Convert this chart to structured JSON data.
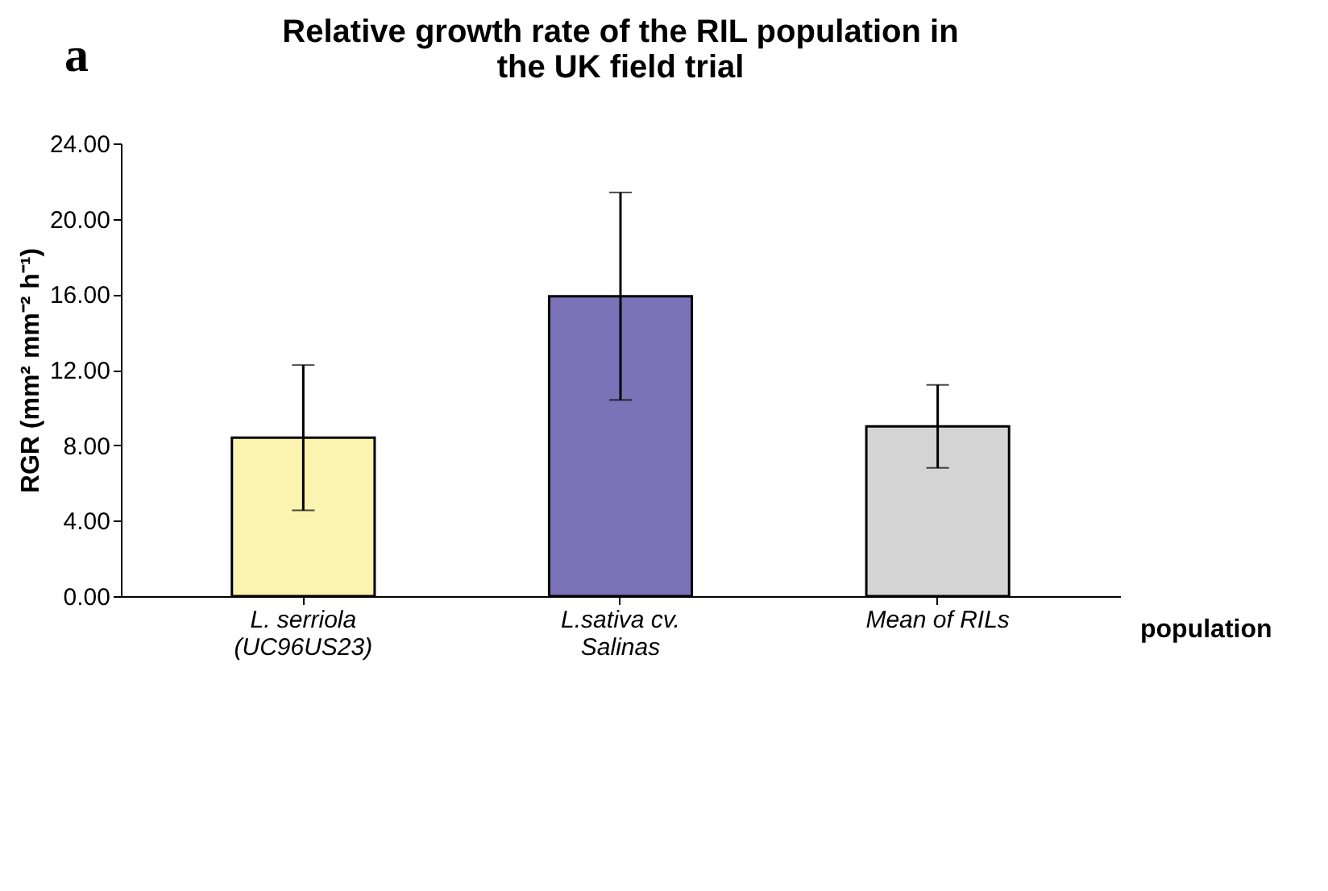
{
  "chart_data": {
    "type": "bar",
    "title": "Relative growth rate of the RIL population in the UK field trial",
    "annotations": [
      "a"
    ],
    "xlabel": "population",
    "ylabel": "RGR (mm² mm⁻² h⁻¹)",
    "categories": [
      "L. serriola\n(UC96US23)",
      "L.sativa cv.\nSalinas",
      "Mean of RILs"
    ],
    "values": [
      8.4,
      15.9,
      9.0
    ],
    "errors": [
      3.85,
      5.5,
      2.2
    ],
    "colors": [
      "#fbf3b0",
      "#7b72b8",
      "#d4d4d4"
    ],
    "ylim": [
      0,
      24
    ],
    "yticks": [
      {
        "value": 0,
        "label": "0.00"
      },
      {
        "value": 4,
        "label": "4.00"
      },
      {
        "value": 8,
        "label": "8.00"
      },
      {
        "value": 12,
        "label": "12.00"
      },
      {
        "value": 16,
        "label": "16.00"
      },
      {
        "value": 20,
        "label": "20.00"
      },
      {
        "value": 24,
        "label": "24.00"
      }
    ],
    "grid": false,
    "legend": false
  }
}
